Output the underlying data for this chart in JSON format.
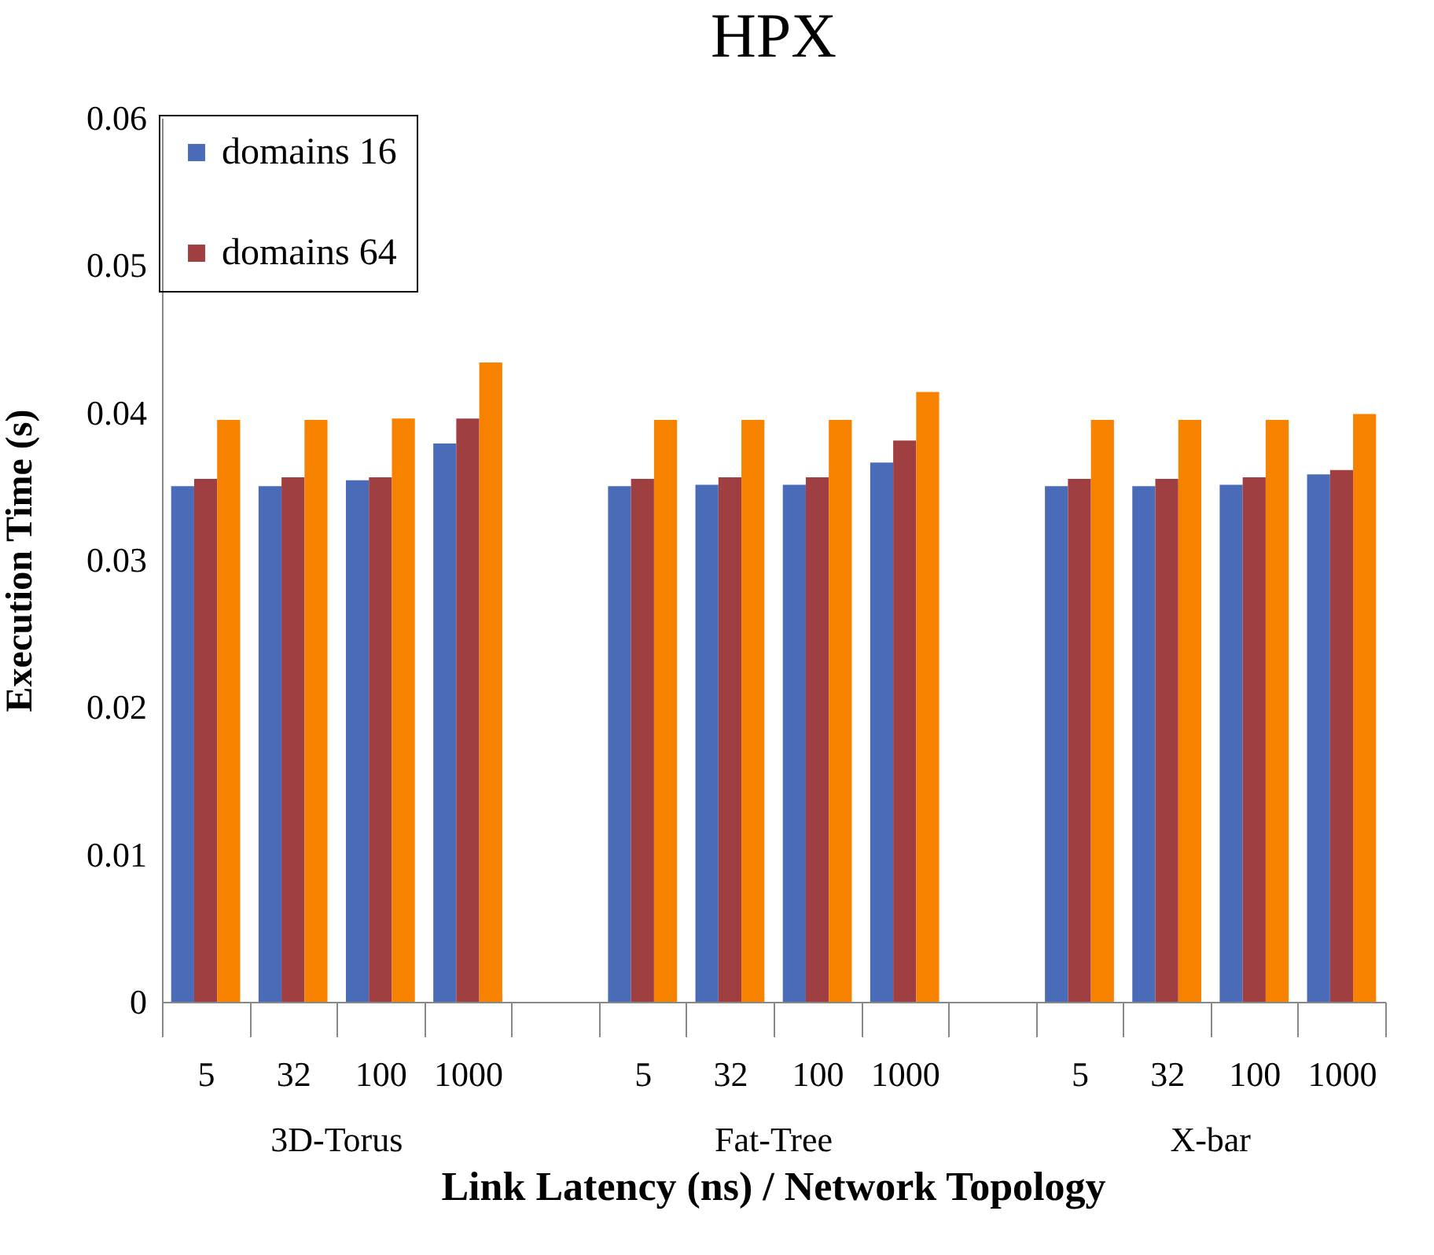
{
  "chart_data": {
    "type": "bar",
    "title": "HPX",
    "xlabel": "Link Latency (ns) / Network Topology",
    "ylabel": "Execution Time (s)",
    "categories": [
      "5",
      "32",
      "100",
      "1000",
      null,
      "5",
      "32",
      "100",
      "1000",
      null,
      "5",
      "32",
      "100",
      "1000"
    ],
    "series": [
      {
        "name": "domains 16",
        "color": "#4a6cb8",
        "values": [
          0.035,
          0.035,
          0.0354,
          0.0379,
          null,
          0.035,
          0.0351,
          0.0351,
          0.0366,
          null,
          0.035,
          0.035,
          0.0351,
          0.0358
        ]
      },
      {
        "name": "domains 64",
        "color": "#a03f42",
        "values": [
          0.0355,
          0.0356,
          0.0356,
          0.0396,
          null,
          0.0355,
          0.0356,
          0.0356,
          0.0381,
          null,
          0.0355,
          0.0355,
          0.0356,
          0.0361
        ]
      },
      {
        "color": "#f78200",
        "values": [
          0.0395,
          0.0395,
          0.0396,
          0.0434,
          null,
          0.0395,
          0.0395,
          0.0395,
          0.0414,
          null,
          0.0395,
          0.0395,
          0.0395,
          0.0399
        ]
      }
    ],
    "annotations": [
      "3D-Torus",
      "Fat-Tree",
      "X-bar"
    ],
    "ylim": [
      0,
      0.06
    ],
    "yticks": [
      0,
      0.01,
      0.02,
      0.03,
      0.04,
      0.05,
      0.06
    ],
    "grid": false,
    "legend": "top left"
  }
}
